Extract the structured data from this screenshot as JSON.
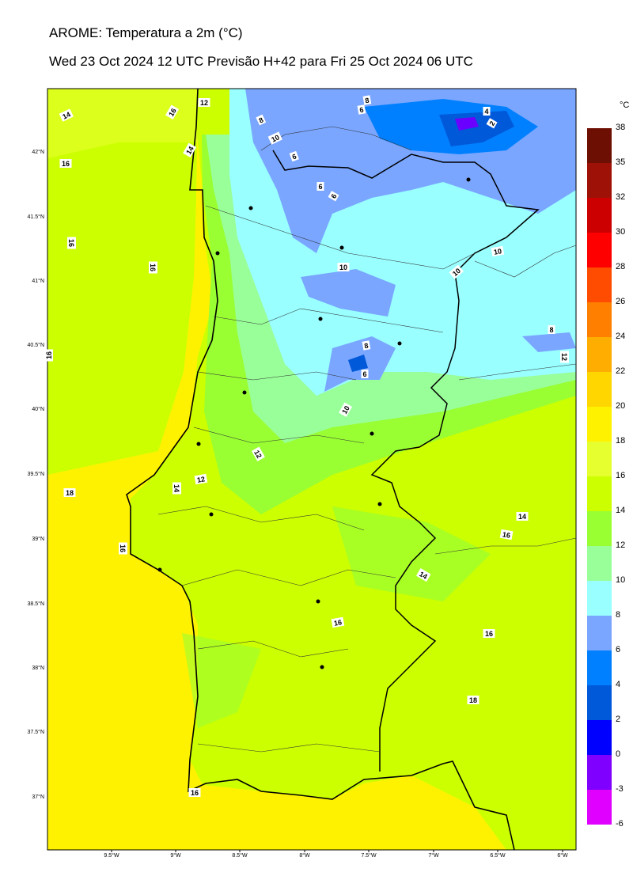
{
  "header": {
    "title": "AROME: Temperatura a 2m (°C)",
    "subtitle": "Wed 23 Oct 2024 12 UTC Previsão H+42 para Fri 25 Oct 2024 06 UTC"
  },
  "colorbar": {
    "unit": "°C",
    "ticks": [
      "38",
      "35",
      "32",
      "30",
      "28",
      "26",
      "24",
      "22",
      "20",
      "18",
      "16",
      "14",
      "12",
      "10",
      "8",
      "6",
      "4",
      "2",
      "0",
      "-3",
      "-6"
    ],
    "colors": [
      "#6e0f04",
      "#9e1106",
      "#cc0000",
      "#ff0000",
      "#ff4c00",
      "#ff8000",
      "#ffad00",
      "#ffd600",
      "#fff200",
      "#e6ff2e",
      "#ccff00",
      "#99ff33",
      "#99ff99",
      "#99ffff",
      "#7aa6ff",
      "#0080ff",
      "#0059d9",
      "#0000ff",
      "#8000ff",
      "#df00ff"
    ]
  },
  "axes": {
    "lat_labels": [
      "42°N",
      "41.5°N",
      "41°N",
      "40.5°N",
      "40°N",
      "39.5°N",
      "39°N",
      "38.5°N",
      "38°N",
      "37.5°N",
      "37°N"
    ],
    "lon_labels": [
      "9.5°W",
      "9°W",
      "8.5°W",
      "8°W",
      "7.5°W",
      "7°W",
      "6.5°W",
      "6°W"
    ]
  },
  "contour_labels": [
    "14",
    "16",
    "12",
    "14",
    "16",
    "16",
    "16",
    "16",
    "8",
    "10",
    "6",
    "8",
    "6",
    "4",
    "2",
    "6",
    "6",
    "10",
    "10",
    "10",
    "8",
    "12",
    "8",
    "6",
    "10",
    "12",
    "12",
    "14",
    "18",
    "16",
    "14",
    "16",
    "14",
    "16",
    "16",
    "18",
    "16"
  ]
}
